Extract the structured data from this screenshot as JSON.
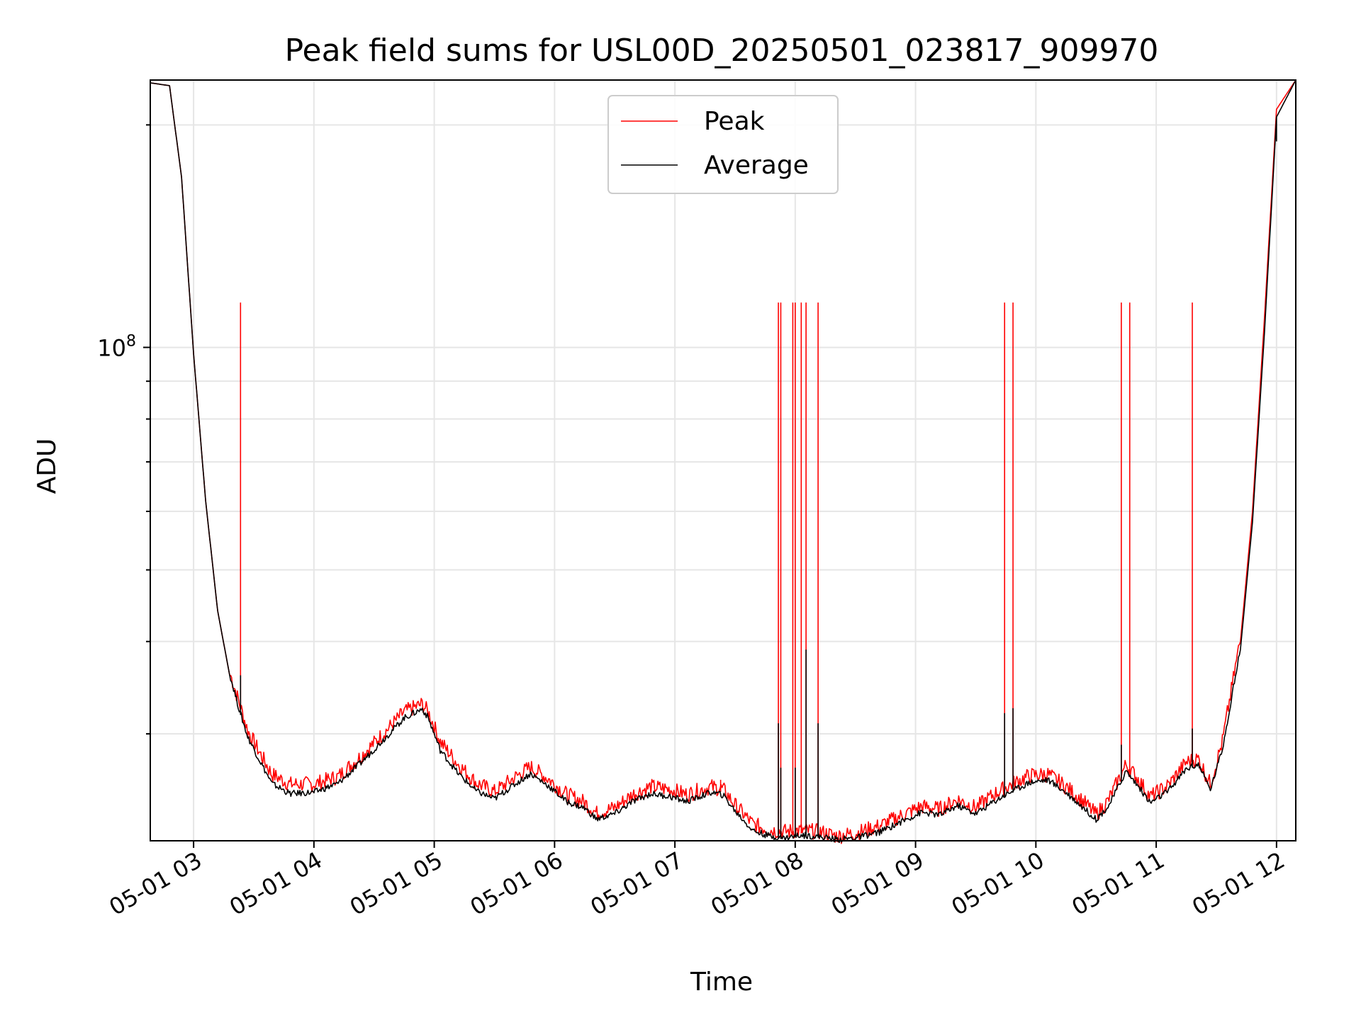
{
  "chart_data": {
    "type": "line",
    "title": "Peak field sums for USL00D_20250501_023817_909970",
    "xlabel": "Time",
    "ylabel": "ADU",
    "y_scale": "log",
    "grid": true,
    "legend_position": "upper center",
    "x_tick_labels": [
      "05-01 03",
      "05-01 04",
      "05-01 05",
      "05-01 06",
      "05-01 07",
      "05-01 08",
      "05-01 09",
      "05-01 10",
      "05-01 11",
      "05-01 12"
    ],
    "x_tick_values_hours": [
      3,
      4,
      5,
      6,
      7,
      8,
      9,
      10,
      11,
      12
    ],
    "y_tick_major_label": {
      "base": "10",
      "exponent": "8",
      "value": 100000000
    },
    "xlim_hours": [
      2.64,
      12.16
    ],
    "ylim": [
      21500000,
      230000000
    ],
    "x_unit": "hours of day 2025-05-01",
    "series": [
      {
        "name": "Peak",
        "color": "#ff0000",
        "points": [
          [
            2.64,
            228000000
          ],
          [
            2.8,
            226000000
          ],
          [
            2.9,
            170000000
          ],
          [
            3.0,
            98000000
          ],
          [
            3.1,
            62000000
          ],
          [
            3.2,
            44000000
          ],
          [
            3.3,
            36000000
          ],
          [
            3.38,
            32700000
          ],
          [
            3.45,
            30000000
          ],
          [
            3.55,
            28000000
          ],
          [
            3.65,
            26200000
          ],
          [
            3.8,
            25400000
          ],
          [
            4.0,
            25400000
          ],
          [
            4.2,
            26000000
          ],
          [
            4.4,
            27800000
          ],
          [
            4.6,
            30000000
          ],
          [
            4.75,
            31800000
          ],
          [
            4.9,
            32600000
          ],
          [
            4.95,
            31800000
          ],
          [
            5.05,
            29000000
          ],
          [
            5.2,
            27000000
          ],
          [
            5.35,
            25500000
          ],
          [
            5.5,
            24800000
          ],
          [
            5.65,
            25800000
          ],
          [
            5.8,
            26800000
          ],
          [
            5.95,
            25800000
          ],
          [
            6.1,
            24600000
          ],
          [
            6.25,
            24000000
          ],
          [
            6.35,
            23200000
          ],
          [
            6.5,
            23600000
          ],
          [
            6.65,
            24600000
          ],
          [
            6.8,
            25200000
          ],
          [
            6.95,
            25000000
          ],
          [
            7.1,
            24600000
          ],
          [
            7.3,
            25200000
          ],
          [
            7.4,
            25000000
          ],
          [
            7.5,
            23800000
          ],
          [
            7.65,
            22400000
          ],
          [
            7.8,
            22000000
          ],
          [
            7.9,
            21900000
          ],
          [
            8.05,
            22000000
          ],
          [
            8.2,
            21900000
          ],
          [
            8.35,
            21600000
          ],
          [
            8.5,
            21800000
          ],
          [
            8.7,
            22300000
          ],
          [
            8.9,
            23100000
          ],
          [
            9.05,
            23700000
          ],
          [
            9.2,
            23500000
          ],
          [
            9.35,
            24200000
          ],
          [
            9.5,
            23600000
          ],
          [
            9.65,
            24600000
          ],
          [
            9.8,
            25400000
          ],
          [
            9.95,
            26100000
          ],
          [
            10.1,
            26200000
          ],
          [
            10.25,
            25200000
          ],
          [
            10.4,
            24000000
          ],
          [
            10.5,
            23100000
          ],
          [
            10.6,
            24100000
          ],
          [
            10.75,
            27000000
          ],
          [
            10.85,
            25800000
          ],
          [
            10.95,
            24400000
          ],
          [
            11.1,
            25300000
          ],
          [
            11.25,
            27200000
          ],
          [
            11.35,
            27500000
          ],
          [
            11.45,
            25400000
          ],
          [
            11.55,
            29000000
          ],
          [
            11.7,
            40000000
          ],
          [
            11.8,
            60000000
          ],
          [
            11.9,
            110000000
          ],
          [
            12.0,
            210000000
          ],
          [
            12.16,
            230000000
          ]
        ],
        "spikes": [
          {
            "x": 3.39,
            "y": 115000000
          },
          {
            "x": 7.86,
            "y": 115000000
          },
          {
            "x": 7.88,
            "y": 115000000
          },
          {
            "x": 7.98,
            "y": 115000000
          },
          {
            "x": 8.0,
            "y": 115000000
          },
          {
            "x": 8.05,
            "y": 115000000
          },
          {
            "x": 8.09,
            "y": 115000000
          },
          {
            "x": 8.19,
            "y": 115000000
          },
          {
            "x": 9.74,
            "y": 115000000
          },
          {
            "x": 9.81,
            "y": 115000000
          },
          {
            "x": 10.71,
            "y": 115000000
          },
          {
            "x": 10.78,
            "y": 115000000
          },
          {
            "x": 11.3,
            "y": 115000000
          },
          {
            "x": 7.38,
            "y": 26000000
          }
        ]
      },
      {
        "name": "Average",
        "color": "#000000",
        "points": [
          [
            2.64,
            228000000
          ],
          [
            2.8,
            226000000
          ],
          [
            2.9,
            170000000
          ],
          [
            3.0,
            98000000
          ],
          [
            3.1,
            62000000
          ],
          [
            3.2,
            44000000
          ],
          [
            3.3,
            36000000
          ],
          [
            3.38,
            32200000
          ],
          [
            3.45,
            29600000
          ],
          [
            3.55,
            27500000
          ],
          [
            3.65,
            25600000
          ],
          [
            3.8,
            24800000
          ],
          [
            4.0,
            24900000
          ],
          [
            4.2,
            25600000
          ],
          [
            4.4,
            27400000
          ],
          [
            4.6,
            29600000
          ],
          [
            4.75,
            31400000
          ],
          [
            4.9,
            32300000
          ],
          [
            4.95,
            31400000
          ],
          [
            5.05,
            28400000
          ],
          [
            5.2,
            26400000
          ],
          [
            5.35,
            25000000
          ],
          [
            5.5,
            24400000
          ],
          [
            5.65,
            25400000
          ],
          [
            5.8,
            26400000
          ],
          [
            5.95,
            25400000
          ],
          [
            6.1,
            24200000
          ],
          [
            6.25,
            23700000
          ],
          [
            6.35,
            22900000
          ],
          [
            6.5,
            23300000
          ],
          [
            6.65,
            24200000
          ],
          [
            6.8,
            24800000
          ],
          [
            6.95,
            24600000
          ],
          [
            7.1,
            24200000
          ],
          [
            7.3,
            24900000
          ],
          [
            7.4,
            24700000
          ],
          [
            7.5,
            23500000
          ],
          [
            7.65,
            22100000
          ],
          [
            7.8,
            21700000
          ],
          [
            7.9,
            21600000
          ],
          [
            8.05,
            21800000
          ],
          [
            8.2,
            21700000
          ],
          [
            8.35,
            21500000
          ],
          [
            8.5,
            21600000
          ],
          [
            8.7,
            22000000
          ],
          [
            8.9,
            22800000
          ],
          [
            9.05,
            23400000
          ],
          [
            9.2,
            23200000
          ],
          [
            9.35,
            23900000
          ],
          [
            9.5,
            23300000
          ],
          [
            9.65,
            24200000
          ],
          [
            9.8,
            25000000
          ],
          [
            9.95,
            25700000
          ],
          [
            10.1,
            25900000
          ],
          [
            10.25,
            24900000
          ],
          [
            10.4,
            23700000
          ],
          [
            10.5,
            22900000
          ],
          [
            10.6,
            23800000
          ],
          [
            10.75,
            26600000
          ],
          [
            10.85,
            25400000
          ],
          [
            10.95,
            24100000
          ],
          [
            11.1,
            25000000
          ],
          [
            11.25,
            26800000
          ],
          [
            11.35,
            27200000
          ],
          [
            11.45,
            25100000
          ],
          [
            11.55,
            28500000
          ],
          [
            11.7,
            39000000
          ],
          [
            11.8,
            58000000
          ],
          [
            11.9,
            105000000
          ],
          [
            12.0,
            205000000
          ],
          [
            12.16,
            230000000
          ]
        ],
        "spikes": [
          {
            "x": 3.39,
            "y": 36000000
          },
          {
            "x": 7.86,
            "y": 31000000
          },
          {
            "x": 7.88,
            "y": 27000000
          },
          {
            "x": 8.0,
            "y": 27000000
          },
          {
            "x": 8.09,
            "y": 39000000
          },
          {
            "x": 8.19,
            "y": 31000000
          },
          {
            "x": 9.74,
            "y": 32000000
          },
          {
            "x": 9.81,
            "y": 32500000
          },
          {
            "x": 10.71,
            "y": 29000000
          },
          {
            "x": 11.3,
            "y": 30500000
          },
          {
            "x": 12.0,
            "y": 190000000
          }
        ]
      }
    ]
  }
}
